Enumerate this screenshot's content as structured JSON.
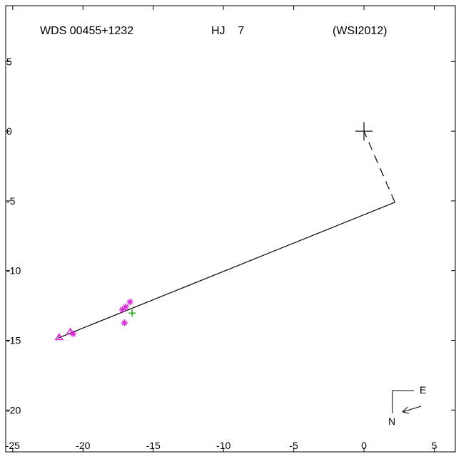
{
  "chart_data": {
    "type": "scatter",
    "title_parts": [
      "WDS 00455+1232",
      "HJ    7",
      "(WSI2012)"
    ],
    "xlim": [
      -25.5,
      6.5
    ],
    "ylim": [
      -23,
      9
    ],
    "x_ticks": [
      -25,
      -20,
      -15,
      -10,
      -5,
      0,
      5
    ],
    "y_ticks": [
      5,
      0,
      -5,
      -10,
      -15,
      -20
    ],
    "grid": false,
    "primary": {
      "x": 0,
      "y": 0
    },
    "orbit_line": [
      [
        -21.8,
        -14.85
      ],
      [
        2.2,
        -5.1
      ]
    ],
    "periastron_line": [
      [
        2.2,
        -5.1
      ],
      [
        0,
        0
      ]
    ],
    "series": [
      {
        "marker": "triangle",
        "color": "#dd22dd",
        "points": [
          [
            -21.7,
            -14.8
          ],
          [
            -20.9,
            -14.4
          ]
        ]
      },
      {
        "marker": "asterisk",
        "color": "#dd22dd",
        "points": [
          [
            -20.7,
            -14.55
          ],
          [
            -17.2,
            -12.8
          ],
          [
            -17.05,
            -13.75
          ],
          [
            -16.95,
            -12.6
          ],
          [
            -16.65,
            -12.25
          ]
        ]
      },
      {
        "marker": "plus",
        "color": "#22aa22",
        "points": [
          [
            -16.5,
            -13.05
          ]
        ]
      }
    ],
    "compass": {
      "east": "E",
      "north": "N"
    }
  }
}
